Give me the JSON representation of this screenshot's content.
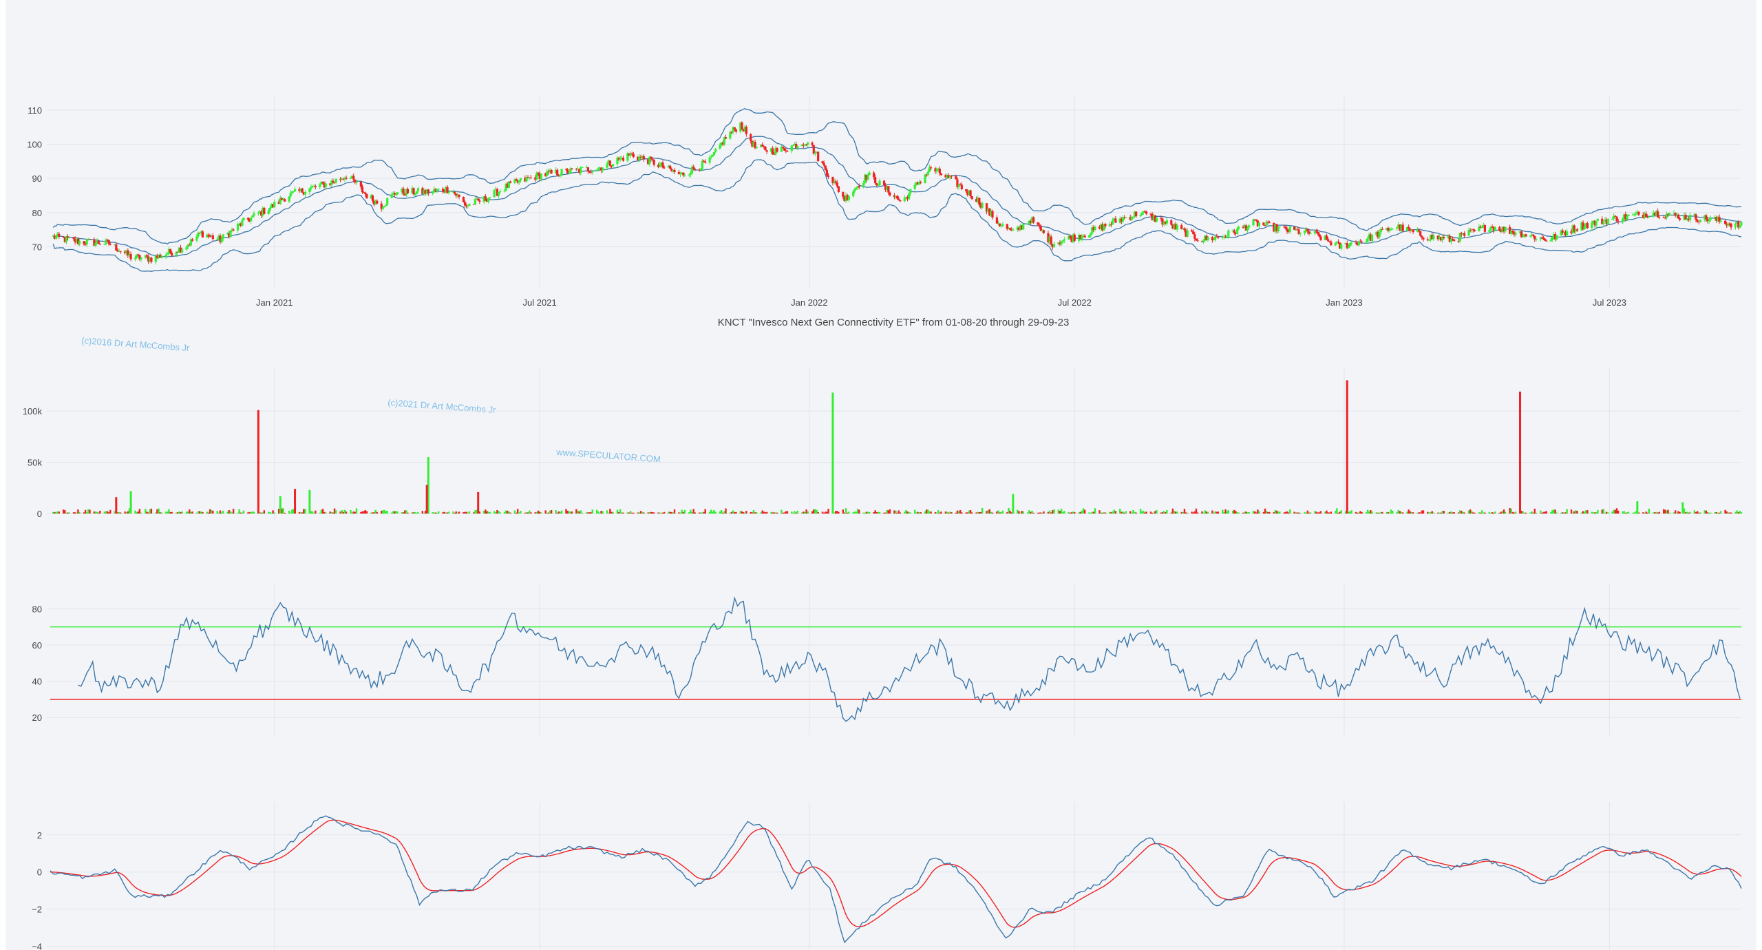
{
  "title": "KNCT \"Invesco Next Gen Connectivity ETF\" from 01-08-20 through 29-09-23",
  "watermarks": [
    "(c)2016 Dr Art McCombs Jr",
    "(c)2021 Dr Art McCombs Jr",
    "www.SPECULATOR.COM"
  ],
  "colors": {
    "up": "#33ee33",
    "down": "#ee2222",
    "band": "#3a76a8",
    "rsi": "#3a76a8",
    "rsi_upper": "#33ee33",
    "rsi_lower": "#ee2222",
    "macd": "#3a76a8",
    "signal": "#ee2222",
    "grid": "#e2e4ec"
  },
  "chart_data": [
    {
      "type": "candlestick",
      "name": "price",
      "x_range": [
        "2020-08-01",
        "2023-09-29"
      ],
      "x_ticks": [
        "Jan 2021",
        "Jul 2021",
        "Jan 2022",
        "Jul 2022",
        "Jan 2023",
        "Jul 2023"
      ],
      "ylim": [
        60,
        112
      ],
      "y_ticks": [
        70,
        80,
        90,
        100,
        110
      ],
      "overlays": [
        "bollinger_upper",
        "moving_average",
        "bollinger_lower"
      ],
      "close_path": [
        [
          "2020-08-01",
          73
        ],
        [
          "2020-08-20",
          71.5
        ],
        [
          "2020-09-10",
          71
        ],
        [
          "2020-09-25",
          67
        ],
        [
          "2020-10-10",
          66.5
        ],
        [
          "2020-11-01",
          70
        ],
        [
          "2020-11-12",
          74
        ],
        [
          "2020-11-25",
          72
        ],
        [
          "2020-12-10",
          77
        ],
        [
          "2020-12-31",
          82
        ],
        [
          "2021-01-10",
          85
        ],
        [
          "2021-01-25",
          87
        ],
        [
          "2021-02-10",
          89
        ],
        [
          "2021-02-20",
          91
        ],
        [
          "2021-03-05",
          85
        ],
        [
          "2021-03-15",
          82
        ],
        [
          "2021-03-25",
          86
        ],
        [
          "2021-04-15",
          86
        ],
        [
          "2021-05-01",
          87
        ],
        [
          "2021-05-12",
          82
        ],
        [
          "2021-05-25",
          84
        ],
        [
          "2021-06-10",
          88
        ],
        [
          "2021-07-01",
          91
        ],
        [
          "2021-07-20",
          92
        ],
        [
          "2021-08-10",
          93
        ],
        [
          "2021-09-01",
          97
        ],
        [
          "2021-09-15",
          95
        ],
        [
          "2021-10-05",
          91
        ],
        [
          "2021-10-25",
          95
        ],
        [
          "2021-11-05",
          102
        ],
        [
          "2021-11-15",
          106
        ],
        [
          "2021-11-25",
          99
        ],
        [
          "2021-12-10",
          98
        ],
        [
          "2021-12-31",
          101
        ],
        [
          "2022-01-10",
          94
        ],
        [
          "2022-01-25",
          84
        ],
        [
          "2022-02-10",
          91
        ],
        [
          "2022-02-25",
          86
        ],
        [
          "2022-03-05",
          83
        ],
        [
          "2022-03-25",
          93
        ],
        [
          "2022-04-10",
          89
        ],
        [
          "2022-04-25",
          84
        ],
        [
          "2022-05-10",
          77
        ],
        [
          "2022-05-20",
          74
        ],
        [
          "2022-06-01",
          78
        ],
        [
          "2022-06-16",
          71
        ],
        [
          "2022-07-10",
          74
        ],
        [
          "2022-08-01",
          78
        ],
        [
          "2022-08-15",
          80
        ],
        [
          "2022-09-01",
          77
        ],
        [
          "2022-09-25",
          72
        ],
        [
          "2022-10-10",
          73
        ],
        [
          "2022-11-01",
          77
        ],
        [
          "2022-11-20",
          75
        ],
        [
          "2022-12-10",
          74
        ],
        [
          "2022-12-29",
          70
        ],
        [
          "2023-01-15",
          72
        ],
        [
          "2023-02-05",
          76
        ],
        [
          "2023-02-25",
          73
        ],
        [
          "2023-03-15",
          72
        ],
        [
          "2023-04-10",
          76
        ],
        [
          "2023-05-01",
          74
        ],
        [
          "2023-05-20",
          72
        ],
        [
          "2023-06-10",
          76
        ],
        [
          "2023-07-01",
          78
        ],
        [
          "2023-07-31",
          80
        ],
        [
          "2023-08-15",
          79
        ],
        [
          "2023-09-10",
          78
        ],
        [
          "2023-09-29",
          76
        ]
      ]
    },
    {
      "type": "bar",
      "name": "volume",
      "x_range": [
        "2020-08-01",
        "2023-09-29"
      ],
      "ylim": [
        0,
        135000
      ],
      "y_ticks": [
        0,
        50000,
        100000
      ],
      "y_tick_labels": [
        "0",
        "50k",
        "100k"
      ],
      "spikes": [
        {
          "x": "2020-12-21",
          "value": 101000,
          "dir": "down"
        },
        {
          "x": "2021-04-16",
          "value": 55000,
          "dir": "up"
        },
        {
          "x": "2021-04-15",
          "value": 28000,
          "dir": "down"
        },
        {
          "x": "2021-05-20",
          "value": 21000,
          "dir": "down"
        },
        {
          "x": "2021-01-15",
          "value": 24000,
          "dir": "down"
        },
        {
          "x": "2021-01-25",
          "value": 23000,
          "dir": "up"
        },
        {
          "x": "2021-01-05",
          "value": 17000,
          "dir": "up"
        },
        {
          "x": "2020-09-15",
          "value": 16000,
          "dir": "down"
        },
        {
          "x": "2020-09-25",
          "value": 22000,
          "dir": "up"
        },
        {
          "x": "2022-01-17",
          "value": 118000,
          "dir": "up"
        },
        {
          "x": "2022-05-20",
          "value": 19000,
          "dir": "up"
        },
        {
          "x": "2023-01-03",
          "value": 130000,
          "dir": "down"
        },
        {
          "x": "2023-05-01",
          "value": 119000,
          "dir": "down"
        },
        {
          "x": "2023-07-20",
          "value": 12000,
          "dir": "up"
        },
        {
          "x": "2023-08-20",
          "value": 11000,
          "dir": "up"
        }
      ],
      "baseline_range": [
        800,
        5000
      ]
    },
    {
      "type": "line",
      "name": "rsi",
      "x_range": [
        "2020-08-01",
        "2023-09-29"
      ],
      "ylim": [
        14,
        90
      ],
      "y_ticks": [
        20,
        40,
        60,
        80
      ],
      "reference_lines": [
        70,
        30
      ],
      "path": [
        [
          "2020-08-20",
          38
        ],
        [
          "2020-08-28",
          50
        ],
        [
          "2020-09-05",
          37
        ],
        [
          "2020-09-25",
          40
        ],
        [
          "2020-10-15",
          38
        ],
        [
          "2020-10-25",
          60
        ],
        [
          "2020-11-01",
          73
        ],
        [
          "2020-11-12",
          70
        ],
        [
          "2020-11-20",
          62
        ],
        [
          "2020-12-01",
          45
        ],
        [
          "2020-12-10",
          52
        ],
        [
          "2020-12-20",
          67
        ],
        [
          "2020-12-28",
          70
        ],
        [
          "2021-01-05",
          80
        ],
        [
          "2021-01-12",
          76
        ],
        [
          "2021-01-22",
          68
        ],
        [
          "2021-02-05",
          60
        ],
        [
          "2021-02-20",
          50
        ],
        [
          "2021-03-05",
          40
        ],
        [
          "2021-03-20",
          42
        ],
        [
          "2021-04-01",
          60
        ],
        [
          "2021-04-20",
          55
        ],
        [
          "2021-05-12",
          35
        ],
        [
          "2021-06-01",
          55
        ],
        [
          "2021-06-10",
          78
        ],
        [
          "2021-06-20",
          70
        ],
        [
          "2021-07-05",
          65
        ],
        [
          "2021-07-20",
          55
        ],
        [
          "2021-08-10",
          50
        ],
        [
          "2021-09-01",
          60
        ],
        [
          "2021-09-20",
          55
        ],
        [
          "2021-10-05",
          30
        ],
        [
          "2021-10-20",
          60
        ],
        [
          "2021-11-05",
          78
        ],
        [
          "2021-11-15",
          85
        ],
        [
          "2021-11-25",
          60
        ],
        [
          "2021-12-05",
          40
        ],
        [
          "2021-12-20",
          48
        ],
        [
          "2021-12-31",
          55
        ],
        [
          "2022-01-15",
          40
        ],
        [
          "2022-01-26",
          18
        ],
        [
          "2022-02-10",
          30
        ],
        [
          "2022-03-01",
          40
        ],
        [
          "2022-03-20",
          55
        ],
        [
          "2022-04-01",
          60
        ],
        [
          "2022-04-15",
          40
        ],
        [
          "2022-05-01",
          30
        ],
        [
          "2022-05-20",
          28
        ],
        [
          "2022-06-10",
          40
        ],
        [
          "2022-06-25",
          55
        ],
        [
          "2022-07-10",
          45
        ],
        [
          "2022-08-01",
          60
        ],
        [
          "2022-08-15",
          68
        ],
        [
          "2022-08-30",
          58
        ],
        [
          "2022-09-15",
          40
        ],
        [
          "2022-09-30",
          30
        ],
        [
          "2022-10-15",
          45
        ],
        [
          "2022-11-01",
          60
        ],
        [
          "2022-11-15",
          45
        ],
        [
          "2022-12-01",
          55
        ],
        [
          "2022-12-15",
          40
        ],
        [
          "2022-12-31",
          35
        ],
        [
          "2023-01-20",
          55
        ],
        [
          "2023-02-05",
          62
        ],
        [
          "2023-02-20",
          50
        ],
        [
          "2023-03-10",
          40
        ],
        [
          "2023-03-25",
          55
        ],
        [
          "2023-04-10",
          60
        ],
        [
          "2023-04-25",
          50
        ],
        [
          "2023-05-10",
          28
        ],
        [
          "2023-05-25",
          40
        ],
        [
          "2023-06-05",
          62
        ],
        [
          "2023-06-15",
          78
        ],
        [
          "2023-06-25",
          70
        ],
        [
          "2023-07-10",
          62
        ],
        [
          "2023-07-25",
          58
        ],
        [
          "2023-08-10",
          50
        ],
        [
          "2023-08-25",
          40
        ],
        [
          "2023-09-05",
          55
        ],
        [
          "2023-09-15",
          60
        ],
        [
          "2023-09-22",
          50
        ],
        [
          "2023-09-29",
          28
        ]
      ]
    },
    {
      "type": "line",
      "name": "macd",
      "x_range": [
        "2020-08-01",
        "2023-09-29"
      ],
      "ylim": [
        -4.2,
        3.4
      ],
      "y_ticks": [
        -4,
        -2,
        0,
        2
      ],
      "y_tick_labels": [
        "−4",
        "−2",
        "0",
        "2"
      ],
      "path": [
        [
          "2020-08-01",
          0
        ],
        [
          "2020-08-25",
          -0.3
        ],
        [
          "2020-09-15",
          0.1
        ],
        [
          "2020-09-25",
          -1.3
        ],
        [
          "2020-10-20",
          -1.3
        ],
        [
          "2020-11-15",
          0.5
        ],
        [
          "2020-11-25",
          1.2
        ],
        [
          "2020-12-05",
          0.8
        ],
        [
          "2020-12-15",
          0.2
        ],
        [
          "2021-01-05",
          1.0
        ],
        [
          "2021-01-20",
          2.2
        ],
        [
          "2021-02-05",
          3.1
        ],
        [
          "2021-02-15",
          2.6
        ],
        [
          "2021-02-28",
          2.3
        ],
        [
          "2021-03-15",
          2.0
        ],
        [
          "2021-03-25",
          1.5
        ],
        [
          "2021-04-10",
          -1.7
        ],
        [
          "2021-04-20",
          -1.0
        ],
        [
          "2021-05-15",
          -1.0
        ],
        [
          "2021-06-01",
          0.4
        ],
        [
          "2021-06-15",
          1.0
        ],
        [
          "2021-07-01",
          0.8
        ],
        [
          "2021-07-20",
          1.3
        ],
        [
          "2021-08-05",
          1.3
        ],
        [
          "2021-08-25",
          0.8
        ],
        [
          "2021-09-10",
          1.2
        ],
        [
          "2021-09-25",
          0.7
        ],
        [
          "2021-10-15",
          -0.7
        ],
        [
          "2021-10-25",
          -0.3
        ],
        [
          "2021-11-10",
          1.5
        ],
        [
          "2021-11-20",
          2.7
        ],
        [
          "2021-12-01",
          2.4
        ],
        [
          "2021-12-20",
          -0.9
        ],
        [
          "2021-12-31",
          0.7
        ],
        [
          "2022-01-15",
          -0.9
        ],
        [
          "2022-01-25",
          -3.8
        ],
        [
          "2022-02-10",
          -2.5
        ],
        [
          "2022-02-25",
          -1.5
        ],
        [
          "2022-03-15",
          -0.7
        ],
        [
          "2022-03-25",
          0.8
        ],
        [
          "2022-04-10",
          0.3
        ],
        [
          "2022-04-25",
          -1.0
        ],
        [
          "2022-05-05",
          -2.3
        ],
        [
          "2022-05-15",
          -3.6
        ],
        [
          "2022-06-01",
          -2.0
        ],
        [
          "2022-06-15",
          -2.2
        ],
        [
          "2022-07-01",
          -1.3
        ],
        [
          "2022-07-20",
          -0.5
        ],
        [
          "2022-08-05",
          0.8
        ],
        [
          "2022-08-20",
          1.9
        ],
        [
          "2022-09-05",
          1.0
        ],
        [
          "2022-09-20",
          -0.5
        ],
        [
          "2022-10-05",
          -1.8
        ],
        [
          "2022-10-25",
          -1.2
        ],
        [
          "2022-11-10",
          1.2
        ],
        [
          "2022-11-25",
          0.7
        ],
        [
          "2022-12-10",
          0.3
        ],
        [
          "2022-12-25",
          -1.3
        ],
        [
          "2023-01-20",
          -0.5
        ],
        [
          "2023-02-10",
          1.2
        ],
        [
          "2023-02-25",
          0.5
        ],
        [
          "2023-03-15",
          0.2
        ],
        [
          "2023-04-05",
          0.7
        ],
        [
          "2023-04-25",
          0.2
        ],
        [
          "2023-05-15",
          -0.7
        ],
        [
          "2023-06-05",
          0.5
        ],
        [
          "2023-06-25",
          1.4
        ],
        [
          "2023-07-10",
          0.9
        ],
        [
          "2023-07-25",
          1.2
        ],
        [
          "2023-08-10",
          0.5
        ],
        [
          "2023-08-25",
          -0.4
        ],
        [
          "2023-09-10",
          0.3
        ],
        [
          "2023-09-20",
          0.2
        ],
        [
          "2023-09-29",
          -0.8
        ]
      ]
    }
  ]
}
